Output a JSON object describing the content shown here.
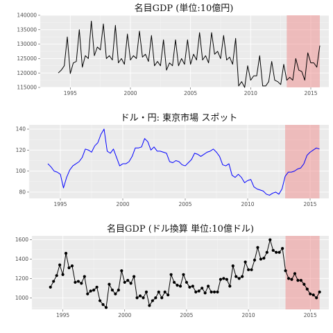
{
  "colors": {
    "panel_bg": "#ebebeb",
    "shade": "#f08080",
    "line_black": "#000000",
    "line_blue": "#0000ff"
  },
  "chart_data": [
    {
      "type": "line",
      "title": "名目GDP (単位:10億円)",
      "ylim": [
        115000,
        140000
      ],
      "xlim": [
        1992.5,
        2016.5
      ],
      "y_ticks": [
        115000,
        120000,
        125000,
        130000,
        135000,
        140000
      ],
      "x_ticks": [
        1995,
        2000,
        2005,
        2010,
        2015
      ],
      "shaded_region": [
        2013.0,
        2015.75
      ],
      "grid": true,
      "color": "#000000",
      "markers": false,
      "x_start": 1994.0,
      "x_step": 0.25,
      "values": [
        120000,
        121000,
        122500,
        132500,
        119800,
        123500,
        124000,
        135000,
        122000,
        126000,
        125000,
        138000,
        126000,
        129000,
        128000,
        137000,
        125000,
        126000,
        124500,
        136500,
        123500,
        125000,
        123000,
        133500,
        124500,
        126000,
        125000,
        134500,
        125500,
        126500,
        124000,
        133000,
        122500,
        124000,
        122500,
        131500,
        121000,
        123500,
        122500,
        131500,
        122500,
        125000,
        123000,
        131500,
        123000,
        126500,
        124500,
        134000,
        124500,
        126000,
        123500,
        134000,
        126500,
        127500,
        125000,
        133000,
        124500,
        125500,
        123000,
        132000,
        115500,
        117000,
        115000,
        122500,
        117500,
        119000,
        119000,
        126000,
        115500,
        115500,
        117000,
        124000,
        117500,
        117000,
        116000,
        123000,
        117500,
        118500,
        117500,
        125000,
        121000,
        120500,
        117500,
        127000,
        123500,
        123500,
        122000,
        129500
      ]
    },
    {
      "type": "line",
      "title": "ドル・円: 東京市場 スポット",
      "ylim": [
        74,
        144
      ],
      "xlim": [
        1992.5,
        2016.5
      ],
      "y_ticks": [
        80,
        100,
        120,
        140
      ],
      "x_ticks": [
        1995,
        2000,
        2005,
        2010,
        2015
      ],
      "shaded_region": [
        2013.0,
        2015.75
      ],
      "grid": true,
      "color": "#0000ff",
      "markers": false,
      "x_start": 1994.0,
      "x_step": 0.25,
      "values": [
        107,
        104,
        100,
        99,
        97,
        84,
        94,
        101,
        105,
        107,
        109,
        113,
        121,
        120,
        118,
        124,
        127,
        135,
        140,
        119,
        117,
        121,
        113,
        105,
        107,
        107,
        109,
        114,
        122,
        122,
        123,
        131,
        128,
        120,
        123,
        119,
        119,
        118,
        117,
        109,
        108,
        110,
        109,
        106,
        105,
        108,
        111,
        117,
        116,
        114,
        116,
        118,
        119,
        121,
        118,
        114,
        106,
        105,
        107,
        96,
        94,
        97,
        94,
        89,
        91,
        92,
        85,
        83,
        82,
        81,
        78,
        77,
        79,
        80,
        78,
        83,
        95,
        99,
        99,
        100,
        102,
        103,
        107,
        115,
        118,
        120,
        122,
        121
      ]
    },
    {
      "type": "line",
      "title": "名目GDP (ドル換算 単位:10億ドル)",
      "ylim": [
        880,
        1640
      ],
      "xlim": [
        1992.5,
        2016.5
      ],
      "y_ticks": [
        1000,
        1200,
        1400,
        1600
      ],
      "x_ticks": [
        1995,
        2000,
        2005,
        2010,
        2015
      ],
      "shaded_region": [
        2013.0,
        2015.75
      ],
      "grid": true,
      "color": "#000000",
      "markers": true,
      "x_start": 1994.0,
      "x_step": 0.25,
      "values": [
        1110,
        1170,
        1230,
        1340,
        1240,
        1460,
        1310,
        1330,
        1160,
        1170,
        1150,
        1220,
        1040,
        1070,
        1080,
        1110,
        970,
        930,
        900,
        1140,
        1080,
        1040,
        1080,
        1280,
        1160,
        1180,
        1150,
        1220,
        1000,
        1020,
        1000,
        1060,
        920,
        970,
        1000,
        1060,
        1000,
        1060,
        1030,
        1240,
        1160,
        1130,
        1120,
        1240,
        1160,
        1110,
        1120,
        1060,
        1070,
        1100,
        1050,
        1120,
        1060,
        1060,
        1060,
        1190,
        1200,
        1190,
        1120,
        1330,
        1220,
        1200,
        1220,
        1370,
        1290,
        1290,
        1390,
        1520,
        1400,
        1410,
        1470,
        1600,
        1490,
        1470,
        1470,
        1510,
        1280,
        1200,
        1190,
        1250,
        1180,
        1180,
        1140,
        1090,
        1040,
        1030,
        1000,
        1060
      ]
    }
  ]
}
